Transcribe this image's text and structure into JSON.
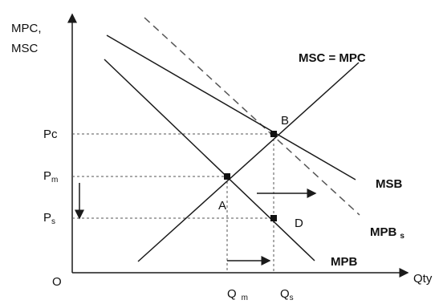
{
  "diagram": {
    "y_axis_label_line1": "MPC,",
    "y_axis_label_line2": "MSC",
    "x_axis_label": "Qty",
    "origin_label": "O",
    "price_labels": {
      "pc_main": "P",
      "pc_sub": "c",
      "pm_main": "P",
      "pm_sub": "m",
      "ps_main": "P",
      "ps_sub": "s"
    },
    "quantity_labels": {
      "qm_main": "Q",
      "qm_sub": "m",
      "qs_main": "Q",
      "qs_sub": "s"
    },
    "curve_labels": {
      "supply": "MSC = MPC",
      "msb": "MSB",
      "mpbs_main": "MPB",
      "mpbs_sub": "s",
      "mpb": "MPB"
    },
    "point_labels": {
      "a": "A",
      "b": "B",
      "d": "D"
    },
    "colors": {
      "line": "#1a1a1a",
      "dashed": "#555555",
      "background": "#ffffff"
    }
  }
}
